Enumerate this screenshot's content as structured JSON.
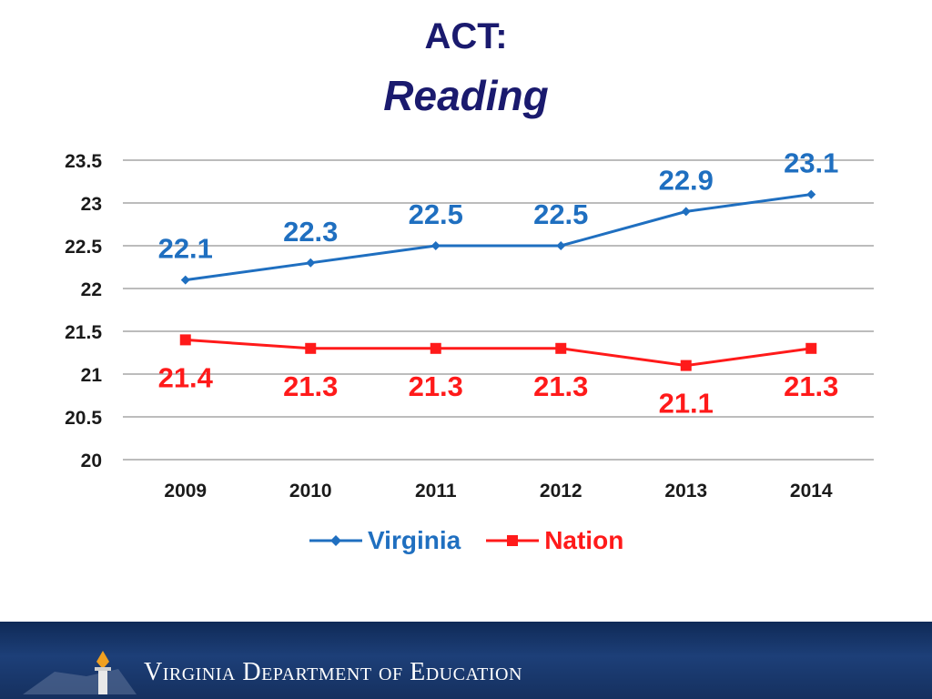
{
  "header": {
    "title": "ACT:",
    "subtitle": "Reading"
  },
  "footer": {
    "text": "Virginia Department of Education",
    "logo_icon": "torch-icon"
  },
  "colors": {
    "virginia": "#1f6fc0",
    "nation": "#ff1a1a",
    "title": "#1a1a6e",
    "grid": "#a6a6a6"
  },
  "chart_data": {
    "type": "line",
    "categories": [
      "2009",
      "2010",
      "2011",
      "2012",
      "2013",
      "2014"
    ],
    "series": [
      {
        "name": "Virginia",
        "values": [
          22.1,
          22.3,
          22.5,
          22.5,
          22.9,
          23.1
        ],
        "labels": [
          "22.1",
          "22.3",
          "22.5",
          "22.5",
          "22.9",
          "23.1"
        ],
        "marker": "diamond",
        "color": "#1f6fc0"
      },
      {
        "name": "Nation",
        "values": [
          21.4,
          21.3,
          21.3,
          21.3,
          21.1,
          21.3
        ],
        "labels": [
          "21.4",
          "21.3",
          "21.3",
          "21.3",
          "21.1",
          "21.3"
        ],
        "marker": "square",
        "color": "#ff1a1a"
      }
    ],
    "yticks": [
      "20",
      "20.5",
      "21",
      "21.5",
      "22",
      "22.5",
      "23",
      "23.5"
    ],
    "ylim": [
      20,
      23.5
    ],
    "grid": true,
    "legend": "bottom"
  }
}
